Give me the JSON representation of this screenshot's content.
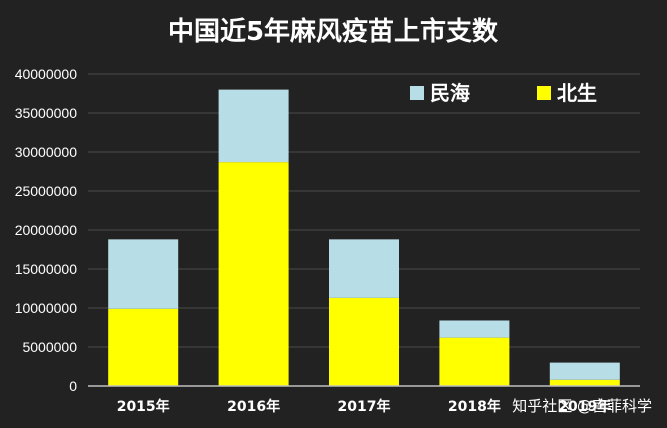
{
  "chart_data": {
    "type": "bar",
    "stacked": true,
    "title": "中国近5年麻风疫苗上市支数",
    "categories": [
      "2015年",
      "2016年",
      "2017年",
      "2018年",
      "2019年"
    ],
    "series": [
      {
        "name": "北生",
        "color": "#FFFF00",
        "values": [
          9900000,
          28700000,
          11300000,
          6200000,
          800000
        ]
      },
      {
        "name": "民海",
        "color": "#B7DDE6",
        "values": [
          8900000,
          9300000,
          7500000,
          2200000,
          2200000
        ]
      }
    ],
    "ylim": [
      0,
      40000000
    ],
    "yticks": [
      0,
      5000000,
      10000000,
      15000000,
      20000000,
      25000000,
      30000000,
      35000000,
      40000000
    ],
    "grid": true,
    "legend_position": "top-right",
    "colors": {
      "background": "#222222",
      "grid": "#4a4a4a",
      "text": "#ffffff"
    }
  },
  "watermark": "知乎社区 @宫菲科学"
}
